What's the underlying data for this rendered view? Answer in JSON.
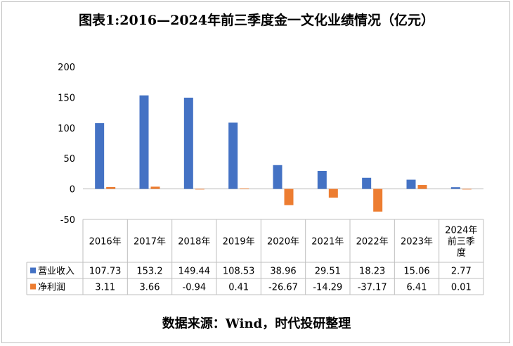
{
  "title": "图表1:2016—2024年前三季度金一文化业绩情况（亿元）",
  "source": "数据来源：Wind，时代投研整理",
  "chart_data": {
    "type": "bar",
    "categories": [
      "2016年",
      "2017年",
      "2018年",
      "2019年",
      "2020年",
      "2021年",
      "2022年",
      "2023年",
      "2024年前三季度"
    ],
    "category_lines": [
      [
        "2016年"
      ],
      [
        "2017年"
      ],
      [
        "2018年"
      ],
      [
        "2019年"
      ],
      [
        "2020年"
      ],
      [
        "2021年"
      ],
      [
        "2022年"
      ],
      [
        "2023年"
      ],
      [
        "2024年",
        "前三季",
        "度"
      ]
    ],
    "series": [
      {
        "name": "营业收入",
        "values": [
          107.73,
          153.2,
          149.44,
          108.53,
          38.96,
          29.51,
          18.23,
          15.06,
          2.77
        ],
        "color": "#4472c4"
      },
      {
        "name": "净利润",
        "values": [
          3.11,
          3.66,
          -0.94,
          0.41,
          -26.67,
          -14.29,
          -37.17,
          6.41,
          0.01
        ],
        "color": "#ed7d31"
      }
    ],
    "value_labels": [
      [
        "107.73",
        "153.2",
        "149.44",
        "108.53",
        "38.96",
        "29.51",
        "18.23",
        "15.06",
        "2.77"
      ],
      [
        "3.11",
        "3.66",
        "-0.94",
        "0.41",
        "-26.67",
        "-14.29",
        "-37.17",
        "6.41",
        "0.01"
      ]
    ],
    "yticks": [
      "200",
      "150",
      "100",
      "50",
      "0",
      "-50"
    ],
    "ylim": [
      -50,
      200
    ],
    "legend": "data-table",
    "grid": false
  }
}
